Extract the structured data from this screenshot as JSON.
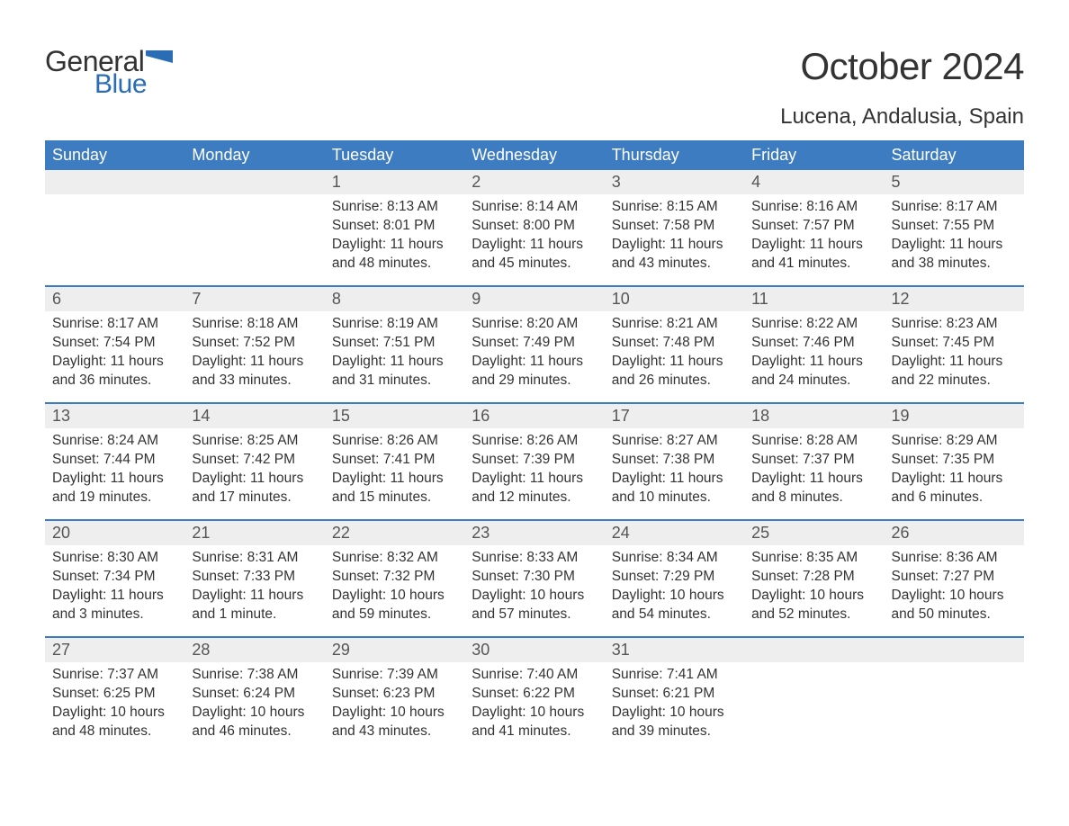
{
  "logo": {
    "text_general": "General",
    "text_blue": "Blue",
    "accent_color": "#2a6db5"
  },
  "header": {
    "month_title": "October 2024",
    "location": "Lucena, Andalusia, Spain",
    "title_fontsize": 42,
    "location_fontsize": 24,
    "title_color": "#333333"
  },
  "calendar": {
    "dayhead_bg": "#3d7cc0",
    "dayhead_text_color": "#ffffff",
    "daynum_bg": "#eeeeee",
    "week_border_color": "#3d7cc0",
    "body_font_size": 15.5,
    "day_names": [
      "Sunday",
      "Monday",
      "Tuesday",
      "Wednesday",
      "Thursday",
      "Friday",
      "Saturday"
    ],
    "weeks": [
      [
        {
          "num": "",
          "sunrise": "",
          "sunset": "",
          "daylight": ""
        },
        {
          "num": "",
          "sunrise": "",
          "sunset": "",
          "daylight": ""
        },
        {
          "num": "1",
          "sunrise": "Sunrise: 8:13 AM",
          "sunset": "Sunset: 8:01 PM",
          "daylight": "Daylight: 11 hours and 48 minutes."
        },
        {
          "num": "2",
          "sunrise": "Sunrise: 8:14 AM",
          "sunset": "Sunset: 8:00 PM",
          "daylight": "Daylight: 11 hours and 45 minutes."
        },
        {
          "num": "3",
          "sunrise": "Sunrise: 8:15 AM",
          "sunset": "Sunset: 7:58 PM",
          "daylight": "Daylight: 11 hours and 43 minutes."
        },
        {
          "num": "4",
          "sunrise": "Sunrise: 8:16 AM",
          "sunset": "Sunset: 7:57 PM",
          "daylight": "Daylight: 11 hours and 41 minutes."
        },
        {
          "num": "5",
          "sunrise": "Sunrise: 8:17 AM",
          "sunset": "Sunset: 7:55 PM",
          "daylight": "Daylight: 11 hours and 38 minutes."
        }
      ],
      [
        {
          "num": "6",
          "sunrise": "Sunrise: 8:17 AM",
          "sunset": "Sunset: 7:54 PM",
          "daylight": "Daylight: 11 hours and 36 minutes."
        },
        {
          "num": "7",
          "sunrise": "Sunrise: 8:18 AM",
          "sunset": "Sunset: 7:52 PM",
          "daylight": "Daylight: 11 hours and 33 minutes."
        },
        {
          "num": "8",
          "sunrise": "Sunrise: 8:19 AM",
          "sunset": "Sunset: 7:51 PM",
          "daylight": "Daylight: 11 hours and 31 minutes."
        },
        {
          "num": "9",
          "sunrise": "Sunrise: 8:20 AM",
          "sunset": "Sunset: 7:49 PM",
          "daylight": "Daylight: 11 hours and 29 minutes."
        },
        {
          "num": "10",
          "sunrise": "Sunrise: 8:21 AM",
          "sunset": "Sunset: 7:48 PM",
          "daylight": "Daylight: 11 hours and 26 minutes."
        },
        {
          "num": "11",
          "sunrise": "Sunrise: 8:22 AM",
          "sunset": "Sunset: 7:46 PM",
          "daylight": "Daylight: 11 hours and 24 minutes."
        },
        {
          "num": "12",
          "sunrise": "Sunrise: 8:23 AM",
          "sunset": "Sunset: 7:45 PM",
          "daylight": "Daylight: 11 hours and 22 minutes."
        }
      ],
      [
        {
          "num": "13",
          "sunrise": "Sunrise: 8:24 AM",
          "sunset": "Sunset: 7:44 PM",
          "daylight": "Daylight: 11 hours and 19 minutes."
        },
        {
          "num": "14",
          "sunrise": "Sunrise: 8:25 AM",
          "sunset": "Sunset: 7:42 PM",
          "daylight": "Daylight: 11 hours and 17 minutes."
        },
        {
          "num": "15",
          "sunrise": "Sunrise: 8:26 AM",
          "sunset": "Sunset: 7:41 PM",
          "daylight": "Daylight: 11 hours and 15 minutes."
        },
        {
          "num": "16",
          "sunrise": "Sunrise: 8:26 AM",
          "sunset": "Sunset: 7:39 PM",
          "daylight": "Daylight: 11 hours and 12 minutes."
        },
        {
          "num": "17",
          "sunrise": "Sunrise: 8:27 AM",
          "sunset": "Sunset: 7:38 PM",
          "daylight": "Daylight: 11 hours and 10 minutes."
        },
        {
          "num": "18",
          "sunrise": "Sunrise: 8:28 AM",
          "sunset": "Sunset: 7:37 PM",
          "daylight": "Daylight: 11 hours and 8 minutes."
        },
        {
          "num": "19",
          "sunrise": "Sunrise: 8:29 AM",
          "sunset": "Sunset: 7:35 PM",
          "daylight": "Daylight: 11 hours and 6 minutes."
        }
      ],
      [
        {
          "num": "20",
          "sunrise": "Sunrise: 8:30 AM",
          "sunset": "Sunset: 7:34 PM",
          "daylight": "Daylight: 11 hours and 3 minutes."
        },
        {
          "num": "21",
          "sunrise": "Sunrise: 8:31 AM",
          "sunset": "Sunset: 7:33 PM",
          "daylight": "Daylight: 11 hours and 1 minute."
        },
        {
          "num": "22",
          "sunrise": "Sunrise: 8:32 AM",
          "sunset": "Sunset: 7:32 PM",
          "daylight": "Daylight: 10 hours and 59 minutes."
        },
        {
          "num": "23",
          "sunrise": "Sunrise: 8:33 AM",
          "sunset": "Sunset: 7:30 PM",
          "daylight": "Daylight: 10 hours and 57 minutes."
        },
        {
          "num": "24",
          "sunrise": "Sunrise: 8:34 AM",
          "sunset": "Sunset: 7:29 PM",
          "daylight": "Daylight: 10 hours and 54 minutes."
        },
        {
          "num": "25",
          "sunrise": "Sunrise: 8:35 AM",
          "sunset": "Sunset: 7:28 PM",
          "daylight": "Daylight: 10 hours and 52 minutes."
        },
        {
          "num": "26",
          "sunrise": "Sunrise: 8:36 AM",
          "sunset": "Sunset: 7:27 PM",
          "daylight": "Daylight: 10 hours and 50 minutes."
        }
      ],
      [
        {
          "num": "27",
          "sunrise": "Sunrise: 7:37 AM",
          "sunset": "Sunset: 6:25 PM",
          "daylight": "Daylight: 10 hours and 48 minutes."
        },
        {
          "num": "28",
          "sunrise": "Sunrise: 7:38 AM",
          "sunset": "Sunset: 6:24 PM",
          "daylight": "Daylight: 10 hours and 46 minutes."
        },
        {
          "num": "29",
          "sunrise": "Sunrise: 7:39 AM",
          "sunset": "Sunset: 6:23 PM",
          "daylight": "Daylight: 10 hours and 43 minutes."
        },
        {
          "num": "30",
          "sunrise": "Sunrise: 7:40 AM",
          "sunset": "Sunset: 6:22 PM",
          "daylight": "Daylight: 10 hours and 41 minutes."
        },
        {
          "num": "31",
          "sunrise": "Sunrise: 7:41 AM",
          "sunset": "Sunset: 6:21 PM",
          "daylight": "Daylight: 10 hours and 39 minutes."
        },
        {
          "num": "",
          "sunrise": "",
          "sunset": "",
          "daylight": ""
        },
        {
          "num": "",
          "sunrise": "",
          "sunset": "",
          "daylight": ""
        }
      ]
    ]
  }
}
